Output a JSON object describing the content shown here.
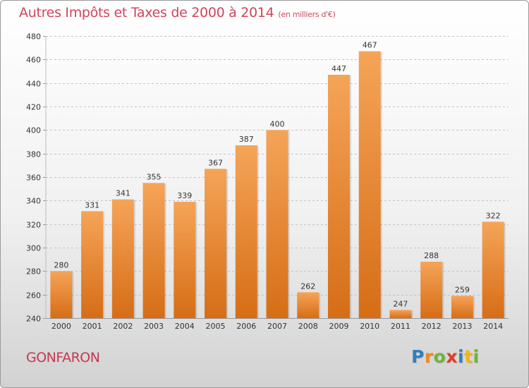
{
  "header": {
    "title": "Autres Impôts et Taxes de 2000 à 2014",
    "subtitle": "(en milliers d'€)"
  },
  "footer": {
    "commune": "GONFARON",
    "brand_letters": [
      {
        "char": "P",
        "color": "#2f7fc1"
      },
      {
        "char": "r",
        "color": "#f08a1c"
      },
      {
        "char": "o",
        "color": "#6fb43a"
      },
      {
        "char": "x",
        "color": "#e03c2e"
      },
      {
        "char": "i",
        "color": "#2f7fc1"
      },
      {
        "char": "t",
        "color": "#f0b41c"
      },
      {
        "char": "i",
        "color": "#6fb43a"
      }
    ]
  },
  "colors": {
    "bar_top": "#f5a458",
    "bar_bottom": "#d66d16",
    "title": "#d0455a"
  },
  "chart_data": {
    "type": "bar",
    "categories": [
      "2000",
      "2001",
      "2002",
      "2003",
      "2004",
      "2005",
      "2006",
      "2007",
      "2008",
      "2009",
      "2010",
      "2011",
      "2012",
      "2013",
      "2014"
    ],
    "values": [
      280,
      331,
      341,
      355,
      339,
      367,
      387,
      400,
      262,
      447,
      467,
      247,
      288,
      259,
      322
    ],
    "title": "Autres Impôts et Taxes de 2000 à 2014",
    "subtitle": "(en milliers d'€)",
    "xlabel": "",
    "ylabel": "",
    "ylim": [
      240,
      480
    ],
    "yticks": [
      240,
      260,
      280,
      300,
      320,
      340,
      360,
      380,
      400,
      420,
      440,
      460,
      480
    ],
    "grid": true,
    "data_labels": true
  }
}
